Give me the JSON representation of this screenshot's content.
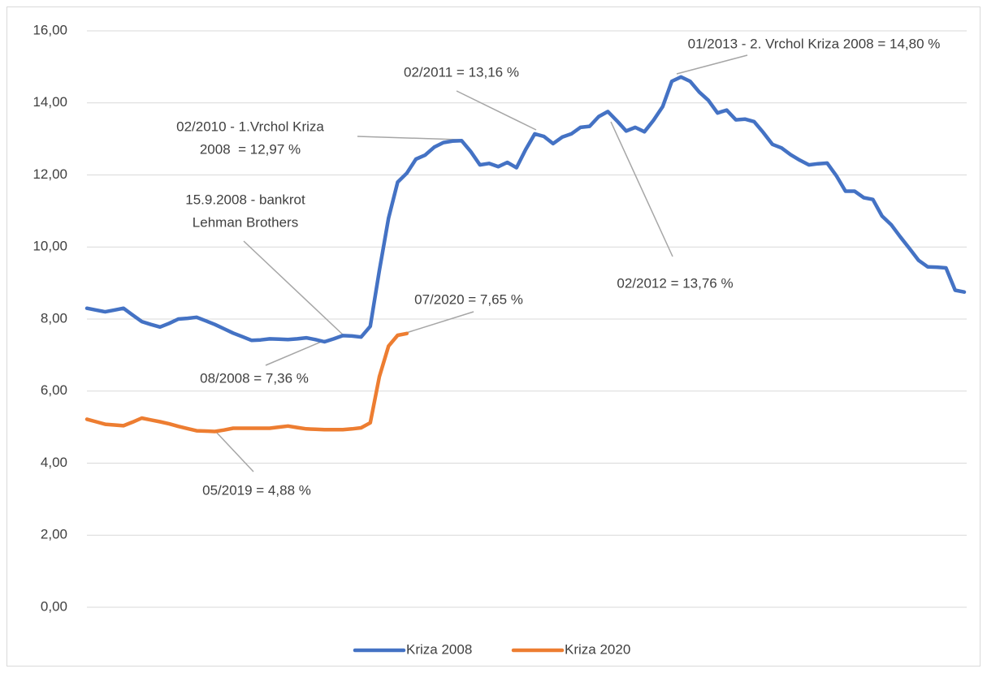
{
  "chart_data": {
    "type": "line",
    "categories": [
      null,
      null,
      null,
      null,
      null,
      null,
      null,
      null,
      null,
      null,
      null,
      null,
      null,
      null,
      null,
      null,
      null,
      null,
      null,
      null,
      null,
      null,
      null,
      null,
      null,
      null,
      null,
      null,
      null,
      null,
      null,
      null,
      null,
      null,
      null,
      null,
      null,
      null,
      null,
      null,
      null,
      null,
      null,
      null,
      null,
      null,
      null,
      null,
      null,
      null,
      null,
      null,
      null,
      null,
      null,
      null,
      null,
      null,
      null,
      null,
      null,
      null,
      null,
      null,
      null,
      null,
      null,
      null,
      null,
      null,
      null,
      null,
      null,
      null,
      null,
      null,
      null,
      null,
      null,
      null,
      null,
      null,
      null,
      null,
      null,
      null,
      null,
      null,
      null,
      null,
      null,
      null,
      null,
      null,
      null,
      null,
      null
    ],
    "series": [
      {
        "name": "Kriza 2008",
        "color": "#4472c4",
        "values": [
          8.3,
          8.25,
          8.2,
          8.25,
          8.3,
          8.11,
          7.93,
          7.85,
          7.78,
          7.88,
          8.0,
          8.02,
          8.05,
          7.95,
          7.85,
          7.73,
          7.61,
          7.51,
          7.41,
          7.42,
          7.45,
          7.44,
          7.43,
          7.45,
          7.48,
          7.43,
          7.37,
          7.45,
          7.54,
          7.53,
          7.5,
          7.8,
          9.35,
          10.8,
          11.8,
          12.05,
          12.44,
          12.55,
          12.77,
          12.9,
          12.94,
          12.95,
          12.65,
          12.28,
          12.32,
          12.23,
          12.35,
          12.2,
          12.7,
          13.14,
          13.07,
          12.87,
          13.05,
          13.14,
          13.32,
          13.35,
          13.62,
          13.76,
          13.5,
          13.22,
          13.32,
          13.2,
          13.52,
          13.9,
          14.6,
          14.72,
          14.6,
          14.3,
          14.07,
          13.72,
          13.8,
          13.53,
          13.55,
          13.48,
          13.18,
          12.85,
          12.75,
          12.56,
          12.41,
          12.28,
          12.31,
          12.33,
          11.98,
          11.55,
          11.55,
          11.37,
          11.32,
          10.86,
          10.62,
          10.28,
          9.96,
          9.63,
          9.45,
          9.44,
          9.42,
          8.8,
          8.75
        ]
      },
      {
        "name": "Kriza 2020",
        "color": "#ed7d31",
        "values": [
          5.22,
          5.15,
          5.08,
          5.06,
          5.04,
          5.14,
          5.25,
          5.2,
          5.15,
          5.09,
          5.02,
          4.96,
          4.9,
          4.89,
          4.88,
          4.92,
          4.97,
          4.97,
          4.97,
          4.97,
          4.97,
          5.0,
          5.03,
          4.99,
          4.95,
          4.94,
          4.93,
          4.93,
          4.93,
          4.95,
          4.98,
          5.12,
          6.4,
          7.25,
          7.55,
          7.6,
          null,
          null,
          null,
          null,
          null,
          null,
          null,
          null,
          null,
          null,
          null,
          null,
          null,
          null,
          null,
          null,
          null,
          null,
          null,
          null,
          null,
          null,
          null,
          null,
          null,
          null,
          null,
          null,
          null,
          null,
          null,
          null,
          null,
          null,
          null,
          null,
          null,
          null,
          null,
          null,
          null,
          null,
          null,
          null,
          null,
          null,
          null,
          null,
          null,
          null,
          null,
          null,
          null,
          null,
          null,
          null,
          null,
          null,
          null,
          null,
          null
        ]
      }
    ],
    "ylim": [
      0,
      16
    ],
    "yticks": [
      {
        "value": 0,
        "label": "0,00"
      },
      {
        "value": 2,
        "label": "2,00"
      },
      {
        "value": 4,
        "label": "4,00"
      },
      {
        "value": 6,
        "label": "6,00"
      },
      {
        "value": 8,
        "label": "8,00"
      },
      {
        "value": 10,
        "label": "10,00"
      },
      {
        "value": 12,
        "label": "12,00"
      },
      {
        "value": 14,
        "label": "14,00"
      },
      {
        "value": 16,
        "label": "16,00"
      }
    ],
    "grid": true,
    "legend": "bottom",
    "annotations": [
      {
        "lines": [
          "01/2013 - 2. Vrchol Kriza 2008 = 14,80 %"
        ]
      },
      {
        "lines": [
          "02/2011 = 13,16 %"
        ]
      },
      {
        "lines": [
          "02/2010 - 1.Vrchol Kriza",
          "2008  = 12,97 %"
        ]
      },
      {
        "lines": [
          "15.9.2008 - bankrot",
          "Lehman Brothers"
        ]
      },
      {
        "lines": [
          "02/2012 = 13,76 %"
        ]
      },
      {
        "lines": [
          "07/2020 = 7,65 %"
        ]
      },
      {
        "lines": [
          "08/2008 = 7,36 %"
        ]
      },
      {
        "lines": [
          "05/2019 = 4,88 %"
        ]
      }
    ]
  }
}
